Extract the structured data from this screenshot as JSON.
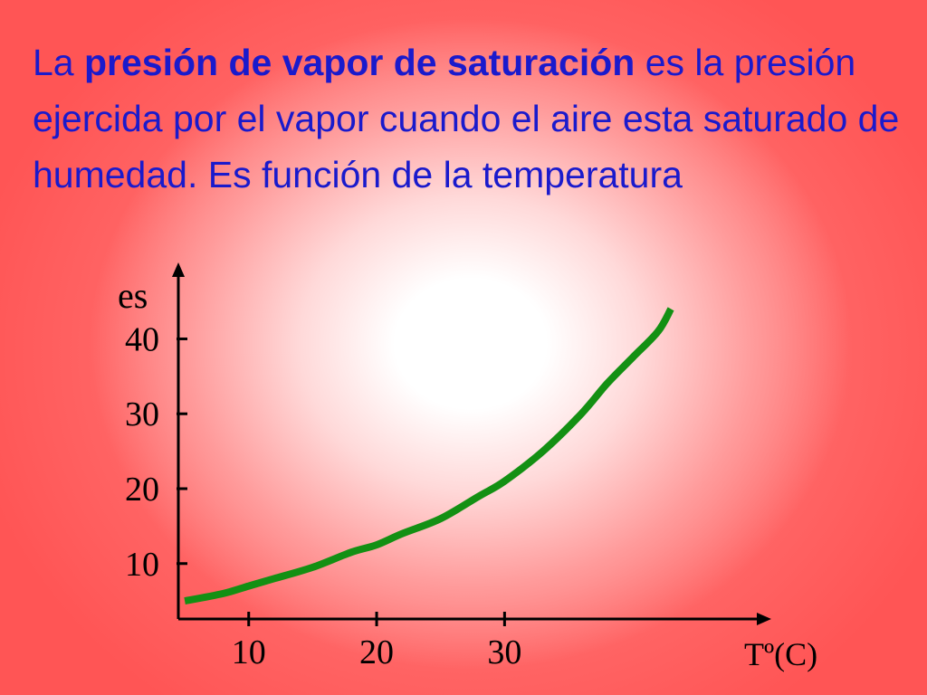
{
  "slide": {
    "text_part1": "La ",
    "text_bold": "presión de vapor de saturación",
    "text_part2": " es la presión ejercida por el vapor cuando el aire esta saturado de humedad. Es función de la temperatura"
  },
  "chart_data": {
    "type": "line",
    "xlabel": "Tº(C)",
    "ylabel": "es",
    "x_ticks": [
      10,
      20,
      30
    ],
    "y_ticks": [
      10,
      20,
      30,
      40
    ],
    "xlim": [
      4.5,
      50
    ],
    "ylim": [
      2.6,
      49
    ],
    "grid": false,
    "legend": "none",
    "series": [
      {
        "x": [
          5,
          8,
          10,
          12,
          15,
          18,
          20,
          22,
          25,
          28,
          30,
          33,
          36,
          38,
          40,
          42,
          43
        ],
        "y": [
          5,
          6,
          7,
          8,
          9.5,
          11.5,
          12.5,
          14,
          16,
          19,
          21,
          25,
          30,
          34,
          37.5,
          41,
          44
        ],
        "color": "#139013"
      }
    ]
  }
}
